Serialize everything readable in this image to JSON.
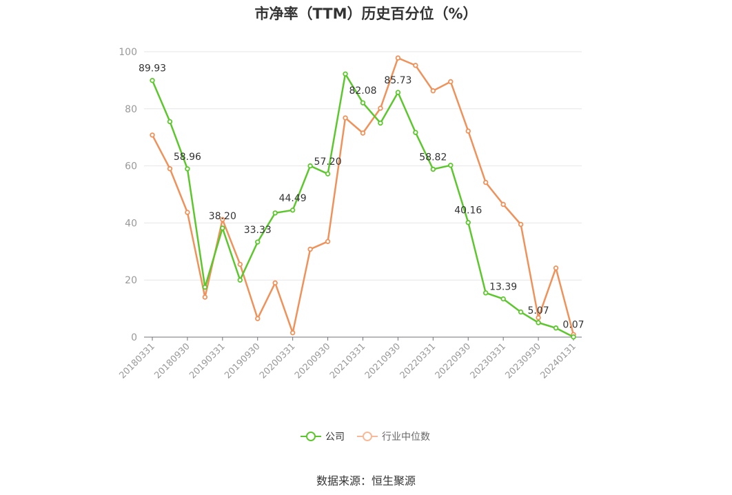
{
  "title": "市净率（TTM）历史百分位（%）",
  "source": "数据来源：恒生聚源",
  "chart_data": {
    "type": "line",
    "title": "市净率（TTM）历史百分位（%）",
    "xlabel": "",
    "ylabel": "",
    "ylim": [
      0,
      100
    ],
    "yticks": [
      0,
      20,
      40,
      60,
      80,
      100
    ],
    "grid": true,
    "legend_position": "bottom",
    "x": [
      "20180331",
      "20180630",
      "20180930",
      "20181231",
      "20190331",
      "20190630",
      "20190930",
      "20191231",
      "20200331",
      "20200630",
      "20200930",
      "20201231",
      "20210331",
      "20210630",
      "20210930",
      "20211231",
      "20220331",
      "20220630",
      "20220930",
      "20221231",
      "20230331",
      "20230630",
      "20230930",
      "20231231",
      "20240131"
    ],
    "x_tick_labels": [
      "20180331",
      "20180930",
      "20190331",
      "20190930",
      "20200331",
      "20200930",
      "20210331",
      "20210930",
      "20220331",
      "20220930",
      "20230331",
      "20230930",
      "20240131"
    ],
    "series": [
      {
        "name": "公司",
        "color": "#5cc72c",
        "values": [
          89.93,
          75.5,
          58.96,
          17.5,
          38.2,
          20.0,
          33.33,
          43.5,
          44.49,
          60.0,
          57.2,
          92.2,
          82.08,
          75.0,
          85.73,
          71.7,
          58.82,
          60.2,
          40.16,
          15.5,
          13.39,
          8.8,
          5.07,
          3.2,
          0.07
        ],
        "labels": [
          "89.93",
          "",
          "58.96",
          "",
          "38.20",
          "",
          "33.33",
          "",
          "44.49",
          "",
          "57.20",
          "",
          "82.08",
          "",
          "85.73",
          "",
          "58.82",
          "",
          "40.16",
          "",
          "13.39",
          "",
          "5.07",
          "",
          "0.07"
        ]
      },
      {
        "name": "行业中位数",
        "color": "#f0915a",
        "values": [
          70.8,
          59.0,
          43.7,
          14.0,
          41.2,
          25.5,
          6.5,
          19.0,
          1.5,
          30.8,
          33.5,
          76.8,
          71.5,
          80.2,
          97.8,
          95.2,
          86.3,
          89.5,
          72.2,
          54.2,
          46.5,
          39.5,
          6.8,
          24.2,
          0.9
        ]
      }
    ]
  },
  "legend": {
    "company": "公司",
    "industry": "行业中位数"
  }
}
